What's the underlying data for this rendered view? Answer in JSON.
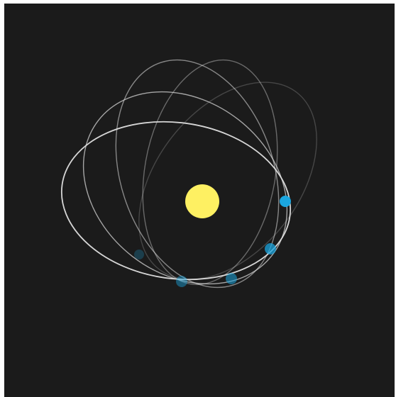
{
  "scene": {
    "type": "precessing-orbit-animation",
    "colors": {
      "background": "#1b1b1b",
      "star": "#fef062",
      "orbit_path": "#e0e0e0",
      "planet": "#1ba6df"
    },
    "orbit_trails": [
      {
        "opacity": 0.95
      },
      {
        "opacity": 0.7
      },
      {
        "opacity": 0.55
      },
      {
        "opacity": 0.4
      },
      {
        "opacity": 0.22
      }
    ],
    "planet_positions": [
      {
        "opacity": 1.0
      },
      {
        "opacity": 0.75
      },
      {
        "opacity": 0.55
      },
      {
        "opacity": 0.45
      },
      {
        "opacity": 0.25
      }
    ]
  }
}
